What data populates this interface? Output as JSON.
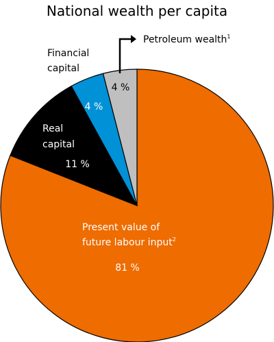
{
  "chart_data": {
    "type": "pie",
    "title": "National wealth per capita",
    "slices": [
      {
        "label_lines": [
          "Present value of",
          "future labour input"
        ],
        "label_sup": "2",
        "value": 81,
        "value_label": "81 %",
        "color": "#ee6c00"
      },
      {
        "label_lines": [
          "Real",
          "capital"
        ],
        "label_sup": "",
        "value": 11,
        "value_label": "11 %",
        "color": "#000000"
      },
      {
        "label_lines": [
          "Financial",
          "capital"
        ],
        "label_sup": "",
        "value": 4,
        "value_label": "4 %",
        "color": "#0091d7"
      },
      {
        "label_lines": [
          "Petroleum wealth"
        ],
        "label_sup": "1",
        "value": 4,
        "value_label": "4 %",
        "color": "#bfbfbf"
      }
    ]
  }
}
